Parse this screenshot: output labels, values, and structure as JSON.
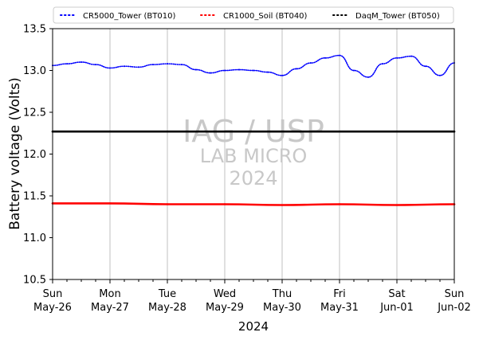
{
  "chart_data": {
    "type": "line",
    "xlabel": "2024",
    "ylabel": "Battery voltage (Volts)",
    "ylim": [
      10.5,
      13.5
    ],
    "xlim": [
      "2024-05-26T00:00",
      "2024-06-02T00:00"
    ],
    "y_ticks": [
      "10.5",
      "11.0",
      "11.5",
      "12.0",
      "12.5",
      "13.0",
      "13.5"
    ],
    "x_ticks": [
      {
        "day": "Sun",
        "date": "May-26"
      },
      {
        "day": "Mon",
        "date": "May-27"
      },
      {
        "day": "Tue",
        "date": "May-28"
      },
      {
        "day": "Wed",
        "date": "May-29"
      },
      {
        "day": "Thu",
        "date": "May-30"
      },
      {
        "day": "Fri",
        "date": "May-31"
      },
      {
        "day": "Sat",
        "date": "Jun-01"
      },
      {
        "day": "Sun",
        "date": "Jun-02"
      }
    ],
    "grid": "vertical",
    "legend_position": "top",
    "watermark": [
      "IAG / USP",
      "LAB MICRO",
      "2024"
    ],
    "series": [
      {
        "name": "CR5000_Tower (BT010)",
        "color": "#0000ff",
        "points": [
          [
            "2024-05-26T00:00",
            13.06
          ],
          [
            "2024-05-26T06:00",
            13.08
          ],
          [
            "2024-05-26T12:00",
            13.1
          ],
          [
            "2024-05-26T18:00",
            13.07
          ],
          [
            "2024-05-27T00:00",
            13.03
          ],
          [
            "2024-05-27T06:00",
            13.05
          ],
          [
            "2024-05-27T12:00",
            13.04
          ],
          [
            "2024-05-27T18:00",
            13.07
          ],
          [
            "2024-05-28T00:00",
            13.08
          ],
          [
            "2024-05-28T06:00",
            13.07
          ],
          [
            "2024-05-28T12:00",
            13.01
          ],
          [
            "2024-05-28T18:00",
            12.97
          ],
          [
            "2024-05-29T00:00",
            13.0
          ],
          [
            "2024-05-29T06:00",
            13.01
          ],
          [
            "2024-05-29T12:00",
            13.0
          ],
          [
            "2024-05-29T18:00",
            12.98
          ],
          [
            "2024-05-30T00:00",
            12.94
          ],
          [
            "2024-05-30T06:00",
            13.02
          ],
          [
            "2024-05-30T12:00",
            13.09
          ],
          [
            "2024-05-30T18:00",
            13.15
          ],
          [
            "2024-05-31T00:00",
            13.18
          ],
          [
            "2024-05-31T06:00",
            13.0
          ],
          [
            "2024-05-31T12:00",
            12.92
          ],
          [
            "2024-05-31T18:00",
            13.08
          ],
          [
            "2024-06-01T00:00",
            13.15
          ],
          [
            "2024-06-01T06:00",
            13.17
          ],
          [
            "2024-06-01T12:00",
            13.05
          ],
          [
            "2024-06-01T18:00",
            12.94
          ],
          [
            "2024-06-02T00:00",
            13.09
          ]
        ]
      },
      {
        "name": "CR1000_Soil (BT040)",
        "color": "#ff0000",
        "points": [
          [
            "2024-05-26T00:00",
            11.41
          ],
          [
            "2024-05-27T00:00",
            11.41
          ],
          [
            "2024-05-28T00:00",
            11.4
          ],
          [
            "2024-05-29T00:00",
            11.4
          ],
          [
            "2024-05-30T00:00",
            11.39
          ],
          [
            "2024-05-31T00:00",
            11.4
          ],
          [
            "2024-06-01T00:00",
            11.39
          ],
          [
            "2024-06-02T00:00",
            11.4
          ]
        ]
      },
      {
        "name": "DaqM_Tower (BT050)",
        "color": "#000000",
        "points": [
          [
            "2024-05-26T00:00",
            12.27
          ],
          [
            "2024-05-27T00:00",
            12.27
          ],
          [
            "2024-05-28T00:00",
            12.27
          ],
          [
            "2024-05-29T00:00",
            12.27
          ],
          [
            "2024-05-30T00:00",
            12.27
          ],
          [
            "2024-05-31T00:00",
            12.27
          ],
          [
            "2024-06-01T00:00",
            12.27
          ],
          [
            "2024-06-02T00:00",
            12.27
          ]
        ]
      }
    ]
  }
}
